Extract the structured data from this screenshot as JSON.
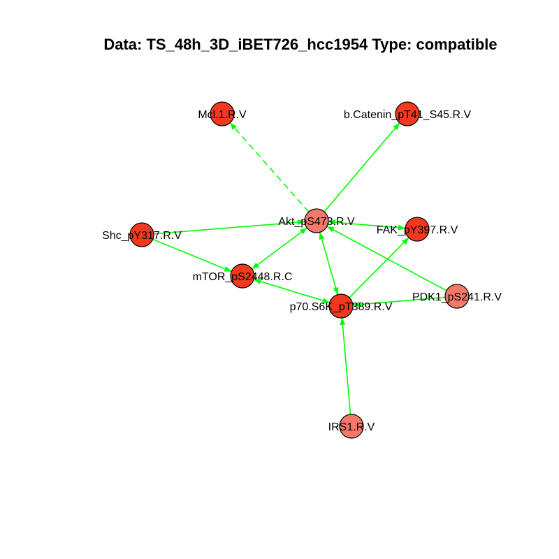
{
  "title": "Data: TS_48h_3D_iBET726_hcc1954 Type: compatible",
  "colors": {
    "edge": "#00ff00",
    "node_stroke": "#000000",
    "node_dark": "#f2391f",
    "node_mid": "#f45a42",
    "node_light": "#f5796a"
  },
  "nodes": [
    {
      "id": "mcl1",
      "label": "Mcl.1.R.V",
      "fill": "node_dark"
    },
    {
      "id": "bcat",
      "label": "b.Catenin_pT41_S45.R.V",
      "fill": "node_dark"
    },
    {
      "id": "akt",
      "label": "Akt_pS473.R.V",
      "fill": "node_light"
    },
    {
      "id": "shc",
      "label": "Shc_pY317.R.V",
      "fill": "node_dark"
    },
    {
      "id": "fak",
      "label": "FAK_pY397.R.V",
      "fill": "node_dark"
    },
    {
      "id": "mtor",
      "label": "mTOR_pS2448.R.C",
      "fill": "node_dark"
    },
    {
      "id": "pdk1",
      "label": "PDK1_pS241.R.V",
      "fill": "node_light"
    },
    {
      "id": "p70",
      "label": "p70.S6K_pT389.R.V",
      "fill": "node_dark"
    },
    {
      "id": "irs1",
      "label": "IRS1.R.V",
      "fill": "node_light"
    }
  ],
  "edges": [
    {
      "from": "akt",
      "to": "mcl1",
      "dashed": true,
      "arrow_end": true,
      "arrow_start": false
    },
    {
      "from": "akt",
      "to": "bcat",
      "dashed": false,
      "arrow_end": true,
      "arrow_start": false
    },
    {
      "from": "shc",
      "to": "akt",
      "dashed": false,
      "arrow_end": true,
      "arrow_start": false
    },
    {
      "from": "akt",
      "to": "fak",
      "dashed": false,
      "arrow_end": true,
      "arrow_start": true
    },
    {
      "from": "akt",
      "to": "mtor",
      "dashed": false,
      "arrow_end": true,
      "arrow_start": true
    },
    {
      "from": "shc",
      "to": "mtor",
      "dashed": false,
      "arrow_end": true,
      "arrow_start": false
    },
    {
      "from": "akt",
      "to": "p70",
      "dashed": false,
      "arrow_end": true,
      "arrow_start": true
    },
    {
      "from": "pdk1",
      "to": "akt",
      "dashed": false,
      "arrow_end": true,
      "arrow_start": false
    },
    {
      "from": "p70",
      "to": "fak",
      "dashed": false,
      "arrow_end": true,
      "arrow_start": false
    },
    {
      "from": "p70",
      "to": "mtor",
      "dashed": false,
      "arrow_end": true,
      "arrow_start": true
    },
    {
      "from": "pdk1",
      "to": "p70",
      "dashed": false,
      "arrow_end": true,
      "arrow_start": false
    },
    {
      "from": "irs1",
      "to": "p70",
      "dashed": false,
      "arrow_end": true,
      "arrow_start": false
    }
  ]
}
